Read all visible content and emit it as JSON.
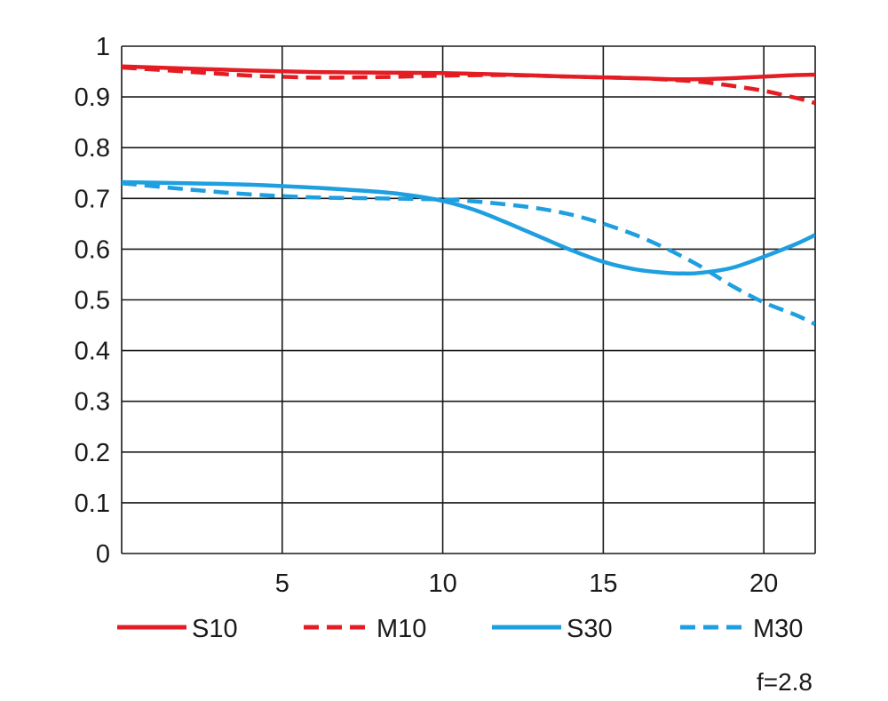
{
  "chart_data": {
    "type": "line",
    "title": "",
    "xlabel": "",
    "ylabel": "",
    "xlim": [
      0,
      21.6
    ],
    "ylim": [
      0,
      1
    ],
    "xticks": [
      5,
      10,
      15,
      20
    ],
    "xtick_labels": [
      "5",
      "10",
      "15",
      "20"
    ],
    "yticks": [
      0,
      0.1,
      0.2,
      0.3,
      0.4,
      0.5,
      0.6,
      0.7,
      0.8,
      0.9,
      1
    ],
    "ytick_labels": [
      "0",
      "0.1",
      "0.2",
      "0.3",
      "0.4",
      "0.5",
      "0.6",
      "0.7",
      "0.8",
      "0.9",
      "1"
    ],
    "grid": true,
    "legend_position": "bottom",
    "annotation": "f=2.8",
    "series": [
      {
        "name": "S10",
        "color": "#e31d23",
        "dash": "solid",
        "x": [
          0,
          2,
          4,
          6,
          8,
          10,
          12,
          14,
          16,
          17,
          18,
          19,
          20,
          21,
          21.6
        ],
        "y": [
          0.96,
          0.956,
          0.952,
          0.949,
          0.948,
          0.947,
          0.944,
          0.94,
          0.937,
          0.935,
          0.935,
          0.937,
          0.94,
          0.943,
          0.944
        ]
      },
      {
        "name": "M10",
        "color": "#e31d23",
        "dash": "dashed",
        "x": [
          0,
          2,
          4,
          5,
          6,
          8,
          10,
          12,
          14,
          16,
          17,
          18,
          19,
          20,
          21,
          21.6
        ],
        "y": [
          0.958,
          0.95,
          0.942,
          0.94,
          0.938,
          0.939,
          0.942,
          0.943,
          0.94,
          0.937,
          0.934,
          0.93,
          0.922,
          0.912,
          0.898,
          0.888
        ]
      },
      {
        "name": "S30",
        "color": "#1e9fe0",
        "dash": "solid",
        "x": [
          0,
          2,
          4,
          6,
          8,
          9,
          10,
          11,
          12,
          13,
          14,
          15,
          16,
          17,
          17.5,
          18,
          19,
          20,
          21,
          21.6
        ],
        "y": [
          0.732,
          0.73,
          0.727,
          0.721,
          0.713,
          0.706,
          0.695,
          0.677,
          0.652,
          0.625,
          0.598,
          0.575,
          0.56,
          0.553,
          0.552,
          0.553,
          0.563,
          0.585,
          0.61,
          0.628
        ]
      },
      {
        "name": "M30",
        "color": "#1e9fe0",
        "dash": "dashed",
        "x": [
          0,
          2,
          4,
          6,
          8,
          10,
          11,
          12,
          13,
          14,
          15,
          16,
          17,
          18,
          19,
          20,
          21,
          21.6
        ],
        "y": [
          0.73,
          0.718,
          0.708,
          0.702,
          0.7,
          0.698,
          0.694,
          0.688,
          0.68,
          0.668,
          0.65,
          0.628,
          0.6,
          0.567,
          0.528,
          0.495,
          0.47,
          0.452
        ]
      }
    ]
  }
}
